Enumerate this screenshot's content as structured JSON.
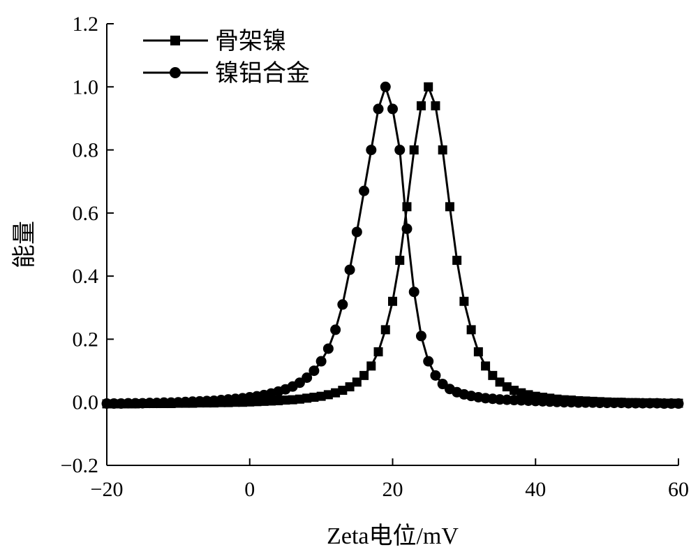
{
  "chart_data": {
    "type": "line",
    "title": "",
    "xlabel": "Zeta电位/mV",
    "ylabel": "能量",
    "xlim": [
      -20,
      60
    ],
    "ylim": [
      -0.2,
      1.2
    ],
    "xticks": [
      -20,
      0,
      20,
      40,
      60
    ],
    "xtick_labels": [
      "−20",
      "0",
      "20",
      "40",
      "60"
    ],
    "yticks": [
      -0.2,
      0.0,
      0.2,
      0.4,
      0.6,
      0.8,
      1.0,
      1.2
    ],
    "ytick_labels": [
      "−0.2",
      "0.0",
      "0.2",
      "0.4",
      "0.6",
      "0.8",
      "1.0",
      "1.2"
    ],
    "grid": false,
    "legend_position": "top-left",
    "series": [
      {
        "name": "骨架镍",
        "marker": "square",
        "x": [
          -20,
          -19,
          -18,
          -17,
          -16,
          -15,
          -14,
          -13,
          -12,
          -11,
          -10,
          -9,
          -8,
          -7,
          -6,
          -5,
          -4,
          -3,
          -2,
          -1,
          0,
          1,
          2,
          3,
          4,
          5,
          6,
          7,
          8,
          9,
          10,
          11,
          12,
          13,
          14,
          15,
          16,
          17,
          18,
          19,
          20,
          21,
          22,
          23,
          24,
          25,
          26,
          27,
          28,
          29,
          30,
          31,
          32,
          33,
          34,
          35,
          36,
          37,
          38,
          39,
          40,
          41,
          42,
          43,
          44,
          45,
          46,
          47,
          48,
          49,
          50,
          51,
          52,
          53,
          54,
          55,
          56,
          57,
          58,
          59,
          60
        ],
        "y": [
          -0.005,
          -0.005,
          -0.005,
          -0.005,
          -0.005,
          -0.004,
          -0.004,
          -0.004,
          -0.004,
          -0.004,
          -0.003,
          -0.003,
          -0.003,
          -0.002,
          -0.002,
          -0.002,
          -0.001,
          -0.001,
          0.0,
          0.0,
          0.001,
          0.002,
          0.003,
          0.004,
          0.005,
          0.007,
          0.008,
          0.01,
          0.013,
          0.016,
          0.019,
          0.024,
          0.03,
          0.038,
          0.049,
          0.064,
          0.085,
          0.115,
          0.16,
          0.23,
          0.32,
          0.45,
          0.62,
          0.8,
          0.94,
          1.0,
          0.94,
          0.8,
          0.62,
          0.45,
          0.32,
          0.23,
          0.16,
          0.115,
          0.085,
          0.064,
          0.049,
          0.038,
          0.03,
          0.024,
          0.019,
          0.016,
          0.013,
          0.01,
          0.008,
          0.007,
          0.005,
          0.004,
          0.003,
          0.002,
          0.001,
          0.0,
          0.0,
          -0.001,
          -0.001,
          -0.002,
          -0.002,
          -0.002,
          -0.003,
          -0.003,
          -0.003
        ]
      },
      {
        "name": "镍铝合金",
        "marker": "circle",
        "x": [
          -20,
          -19,
          -18,
          -17,
          -16,
          -15,
          -14,
          -13,
          -12,
          -11,
          -10,
          -9,
          -8,
          -7,
          -6,
          -5,
          -4,
          -3,
          -2,
          -1,
          0,
          1,
          2,
          3,
          4,
          5,
          6,
          7,
          8,
          9,
          10,
          11,
          12,
          13,
          14,
          15,
          16,
          17,
          18,
          19,
          20,
          21,
          22,
          23,
          24,
          25,
          26,
          27,
          28,
          29,
          30,
          31,
          32,
          33,
          34,
          35,
          36,
          37,
          38,
          39,
          40,
          41,
          42,
          43,
          44,
          45,
          46,
          47,
          48,
          49,
          50,
          51,
          52,
          53,
          54,
          55,
          56,
          57,
          58,
          59,
          60
        ],
        "y": [
          -0.004,
          -0.004,
          -0.004,
          -0.003,
          -0.003,
          -0.003,
          -0.002,
          -0.002,
          -0.001,
          -0.001,
          0.0,
          0.001,
          0.002,
          0.003,
          0.004,
          0.005,
          0.007,
          0.009,
          0.011,
          0.013,
          0.016,
          0.019,
          0.023,
          0.028,
          0.034,
          0.041,
          0.05,
          0.062,
          0.078,
          0.1,
          0.13,
          0.17,
          0.23,
          0.31,
          0.42,
          0.54,
          0.67,
          0.8,
          0.93,
          1.0,
          0.93,
          0.8,
          0.55,
          0.35,
          0.21,
          0.13,
          0.085,
          0.058,
          0.042,
          0.032,
          0.025,
          0.02,
          0.016,
          0.013,
          0.011,
          0.009,
          0.008,
          0.007,
          0.006,
          0.005,
          0.004,
          0.003,
          0.002,
          0.001,
          0.0,
          0.0,
          -0.001,
          -0.001,
          -0.001,
          -0.002,
          -0.002,
          -0.002,
          -0.002,
          -0.003,
          -0.003,
          -0.003,
          -0.003,
          -0.003,
          -0.004,
          -0.004,
          -0.004
        ]
      }
    ]
  }
}
